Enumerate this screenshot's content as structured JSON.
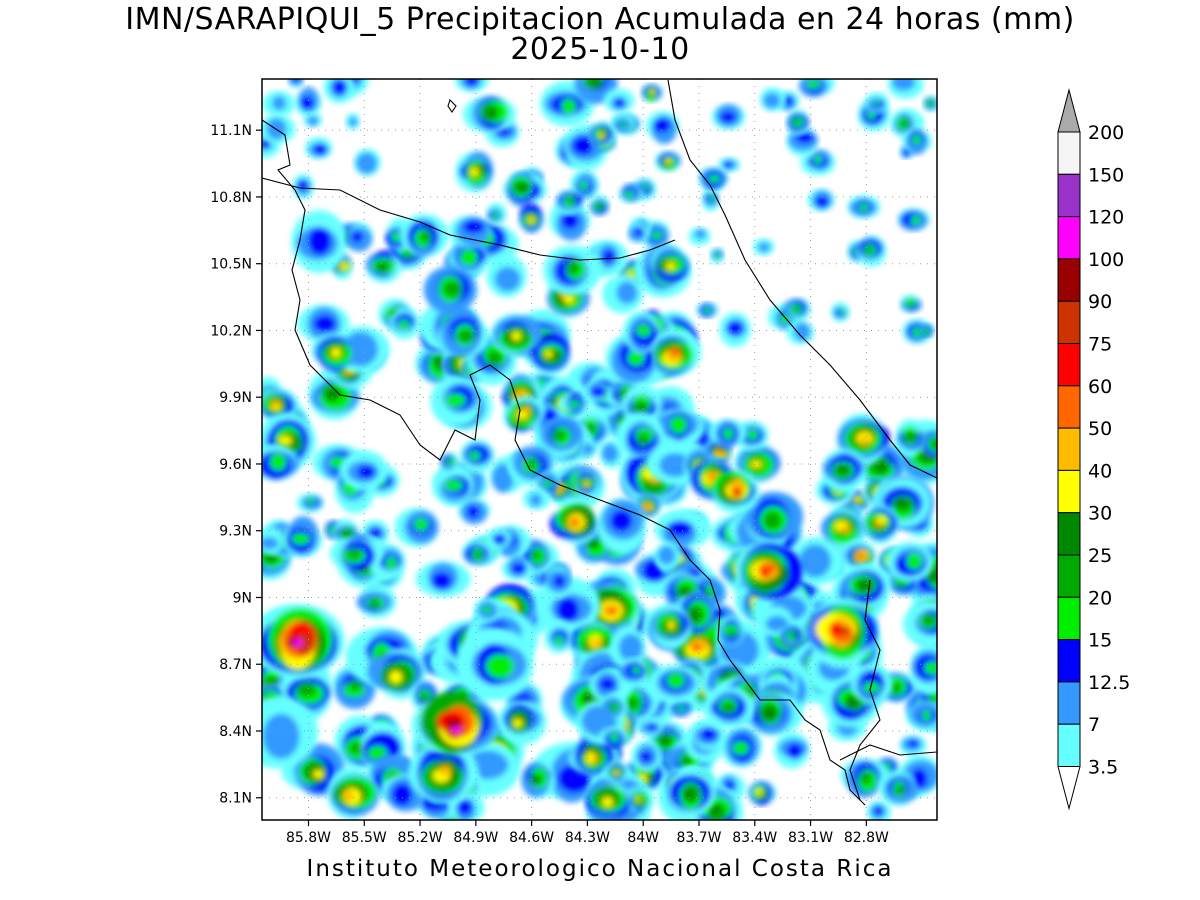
{
  "title": "IMN/SARAPIQUI_5 Precipitacion Acumulada en 24 horas (mm)",
  "date": "2025-10-10",
  "footer": "Instituto Meteorologico Nacional Costa Rica",
  "map": {
    "lon_range": [
      -86.05,
      -82.42
    ],
    "lat_range": [
      8.0,
      11.33
    ],
    "lon_ticks": [
      "85.8W",
      "85.5W",
      "85.2W",
      "84.9W",
      "84.6W",
      "84.3W",
      "84W",
      "83.7W",
      "83.4W",
      "83.1W",
      "82.8W"
    ],
    "lat_ticks": [
      "11.1N",
      "10.8N",
      "10.5N",
      "10.2N",
      "9.9N",
      "9.6N",
      "9.3N",
      "9N",
      "8.7N",
      "8.4N",
      "8.1N"
    ],
    "grid": true
  },
  "colorbar": {
    "labels": [
      "200",
      "150",
      "120",
      "100",
      "90",
      "75",
      "60",
      "50",
      "40",
      "30",
      "25",
      "20",
      "15",
      "12.5",
      "7",
      "3.5"
    ],
    "colors": [
      "#aaaaaa",
      "#f5f5f5",
      "#9933cc",
      "#ff00ff",
      "#990000",
      "#cc3300",
      "#ff0000",
      "#ff6600",
      "#ffbb00",
      "#ffff00",
      "#008800",
      "#00aa00",
      "#00ee00",
      "#0000ff",
      "#3399ff",
      "#66ffff",
      "#ffffff"
    ]
  }
}
